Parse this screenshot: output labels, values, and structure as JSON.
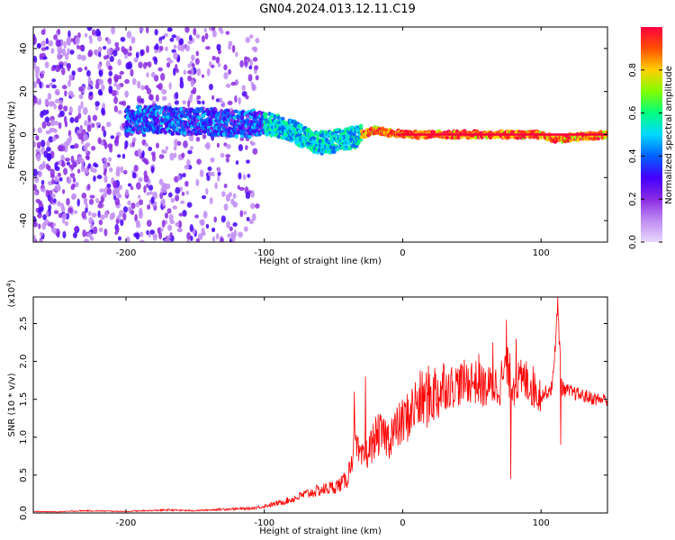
{
  "title": "GN04.2024.013.12.11.C19",
  "colorbar": {
    "label": "Normalized spectral amplitude",
    "ticks": [
      "0.0",
      "0.2",
      "0.4",
      "0.6",
      "0.8"
    ],
    "tick_values": [
      0.0,
      0.2,
      0.4,
      0.6,
      0.8
    ],
    "range": [
      0.0,
      1.0
    ]
  },
  "chart_data": [
    {
      "type": "heatmap",
      "title": "",
      "xlabel": "Height of straight line (km)",
      "ylabel": "Frequency (Hz)",
      "xlim": [
        -267,
        148
      ],
      "ylim": [
        -50,
        50
      ],
      "xticks": [
        -200,
        -100,
        0,
        100
      ],
      "xtick_labels": [
        "-200",
        "-100",
        "0",
        "100"
      ],
      "yticks": [
        -40,
        -20,
        0,
        20,
        40
      ],
      "ytick_labels": [
        "-40",
        "-20",
        "0",
        "20",
        "40"
      ],
      "colormap": [
        "#e8d8fc",
        "#c08cf4",
        "#8a2be2",
        "#4400ff",
        "#0060ff",
        "#00d8ff",
        "#00ff80",
        "#80ff00",
        "#ffd000",
        "#ff5000",
        "#ff0040"
      ],
      "regions": [
        {
          "x": [
            -267,
            -105
          ],
          "y": [
            -50,
            50
          ],
          "amplitude": 0.15,
          "description": "scattered low-amplitude noise"
        },
        {
          "x": [
            -200,
            -100
          ],
          "y": [
            -5,
            10
          ],
          "amplitude": 0.45
        },
        {
          "x": [
            -100,
            -30
          ],
          "y": [
            -12,
            5
          ],
          "amplitude": 0.6
        },
        {
          "x": [
            -30,
            148
          ],
          "y": [
            -2,
            2
          ],
          "amplitude": 0.95
        }
      ],
      "ridge": {
        "x": [
          -200,
          -180,
          -160,
          -140,
          -120,
          -100,
          -90,
          -80,
          -70,
          -60,
          -50,
          -40,
          -30,
          -20,
          -10,
          0,
          50,
          100,
          110,
          148
        ],
        "y": [
          7,
          7,
          6,
          6,
          5,
          5,
          4,
          2,
          -2,
          -4,
          -3,
          -2,
          0,
          2,
          1,
          0,
          0,
          0,
          -2,
          0
        ]
      }
    },
    {
      "type": "line",
      "title": "",
      "xlabel": "Height of straight line (km)",
      "ylabel": "SNR (10 * v/v)",
      "ylabel_multiplier": "(x10",
      "ylabel_multiplier_exp": "4",
      "ylabel_multiplier_close": ")",
      "xlim": [
        -267,
        148
      ],
      "ylim": [
        0,
        28500
      ],
      "xticks": [
        -200,
        -100,
        0,
        100
      ],
      "xtick_labels": [
        "-200",
        "-100",
        "0",
        "100"
      ],
      "yticks": [
        0,
        5000,
        10000,
        15000,
        20000,
        25000
      ],
      "ytick_labels": [
        "0.0",
        "0.5",
        "1.0",
        "1.5",
        "2.0",
        "2.5"
      ],
      "series": [
        {
          "color": "#ff0000",
          "x": [
            -267,
            -250,
            -230,
            -200,
            -170,
            -150,
            -130,
            -110,
            -100,
            -90,
            -80,
            -70,
            -60,
            -50,
            -45,
            -40,
            -35,
            -30,
            -25,
            -20,
            -15,
            -10,
            -5,
            0,
            5,
            10,
            20,
            30,
            40,
            50,
            60,
            70,
            75,
            80,
            90,
            100,
            108,
            112,
            115,
            120,
            130,
            140,
            148
          ],
          "y": [
            200,
            150,
            300,
            200,
            400,
            300,
            500,
            600,
            900,
            1300,
            1800,
            2500,
            3000,
            3400,
            3800,
            4500,
            9000,
            7000,
            8000,
            10000,
            10500,
            9800,
            11000,
            12000,
            13000,
            14500,
            15500,
            16500,
            17000,
            17500,
            16500,
            17000,
            19000,
            17000,
            17500,
            15500,
            16500,
            27000,
            16500,
            16000,
            15500,
            15000,
            15000
          ],
          "spikes": [
            {
              "x": -35,
              "y": 16000
            },
            {
              "x": -27,
              "y": 18000
            },
            {
              "x": -22,
              "y": 10000
            },
            {
              "x": -15,
              "y": 11000
            },
            {
              "x": -8,
              "y": 12500
            },
            {
              "x": 0,
              "y": 14000
            },
            {
              "x": 12,
              "y": 16500
            },
            {
              "x": 30,
              "y": 18000
            },
            {
              "x": 55,
              "y": 21000
            },
            {
              "x": 65,
              "y": 22500
            },
            {
              "x": 75,
              "y": 25500
            },
            {
              "x": 82,
              "y": 23000
            },
            {
              "x": 90,
              "y": 19000
            },
            {
              "x": 112,
              "y": 28500
            },
            {
              "x": 114,
              "y": 9000
            },
            {
              "x": 78,
              "y": 4500
            }
          ]
        }
      ]
    }
  ]
}
